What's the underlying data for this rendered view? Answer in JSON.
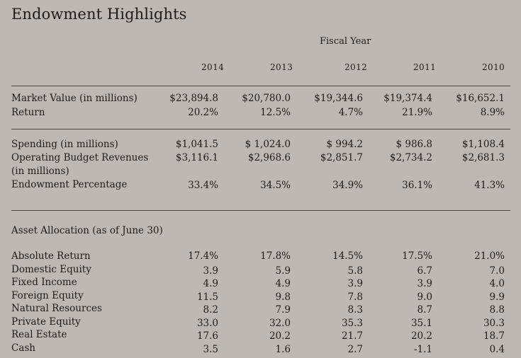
{
  "title": "Endowment Highlights",
  "fiscal_year_label": "Fiscal Year",
  "years": [
    "2014",
    "2013",
    "2012",
    "2011",
    "2010"
  ],
  "section1": [
    {
      "label": "Market Value (in millions)",
      "values": [
        "$23,894.8",
        "$20,780.0",
        "$19,344.6",
        "$19,374.4",
        "$16,652.1"
      ]
    },
    {
      "label": "Return",
      "values": [
        "20.2%",
        "12.5%",
        "4.7%",
        "21.9%",
        "8.9%"
      ]
    }
  ],
  "section2": [
    {
      "label": "Spending (in millions)",
      "values": [
        "$1,041.5",
        "$ 1,024.0",
        "$ 994.2",
        "$ 986.8",
        "$1,108.4"
      ]
    },
    {
      "label": "Operating Budget Revenues",
      "values": [
        "$3,116.1",
        "$2,968.6",
        "$2,851.7",
        "$2,734.2",
        "$2,681.3"
      ]
    },
    {
      "label": "(in millions)",
      "values": []
    },
    {
      "label": "Endowment Percentage",
      "values": [
        "33.4%",
        "34.5%",
        "34.9%",
        "36.1%",
        "41.3%"
      ]
    }
  ],
  "asset_allocation_title": "Asset Allocation (as of June 30)",
  "asset_allocation": [
    {
      "label": "Absolute Return",
      "values": [
        "17.4%",
        "17.8%",
        "14.5%",
        "17.5%",
        "21.0%"
      ]
    },
    {
      "label": "Domestic Equity",
      "values": [
        "3.9",
        "5.9",
        "5.8",
        "6.7",
        "7.0"
      ]
    },
    {
      "label": "Fixed Income",
      "values": [
        "4.9",
        "4.9",
        "3.9",
        "3.9",
        "4.0"
      ]
    },
    {
      "label": "Foreign Equity",
      "values": [
        "11.5",
        "9.8",
        "7.8",
        "9.0",
        "9.9"
      ]
    },
    {
      "label": "Natural Resources",
      "values": [
        "8.2",
        "7.9",
        "8.3",
        "8.7",
        "8.8"
      ]
    },
    {
      "label": "Private Equity",
      "values": [
        "33.0",
        "32.0",
        "35.3",
        "35.1",
        "30.3"
      ]
    },
    {
      "label": "Real Estate",
      "values": [
        "17.6",
        "20.2",
        "21.7",
        "20.2",
        "18.7"
      ]
    },
    {
      "label": "Cash",
      "values": [
        "3.5",
        "1.6",
        "2.7",
        "-1.1",
        "0.4"
      ]
    }
  ]
}
